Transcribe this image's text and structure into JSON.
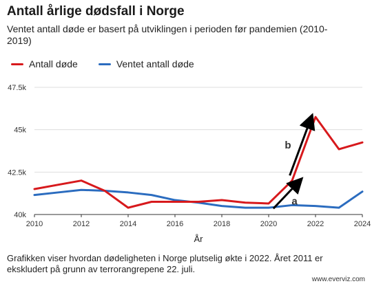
{
  "chart_data": {
    "type": "line",
    "title": "Antall årlige dødsfall i Norge",
    "subtitle": "Ventet antall døde er basert på utviklingen i perioden før pandemien (2010-2019)",
    "xlabel": "År",
    "ylabel": "",
    "x": [
      2010,
      2011,
      2012,
      2013,
      2014,
      2015,
      2016,
      2017,
      2018,
      2019,
      2020,
      2021,
      2022,
      2023,
      2024
    ],
    "xlim": [
      2010,
      2024
    ],
    "ylim": [
      40000,
      47500
    ],
    "x_ticks": [
      2010,
      2012,
      2014,
      2016,
      2018,
      2020,
      2022,
      2024
    ],
    "y_ticks": [
      40000,
      42500,
      45000,
      47500
    ],
    "x_tick_labels": [
      "2010",
      "2012",
      "2014",
      "2016",
      "2018",
      "2020",
      "2022",
      "2024"
    ],
    "y_tick_labels": [
      "40k",
      "42.5k",
      "45k",
      "47.5k"
    ],
    "grid": "horizontal",
    "legend_position": "top-left",
    "series": [
      {
        "name": "Antall døde",
        "color": "#d7191c",
        "values": [
          41500,
          41750,
          42000,
          41400,
          40400,
          40750,
          40750,
          40750,
          40850,
          40700,
          40650,
          42000,
          45750,
          43850,
          44250
        ]
      },
      {
        "name": "Ventet antall døde",
        "color": "#2b6cbf",
        "values": [
          41150,
          41300,
          41450,
          41400,
          41300,
          41150,
          40850,
          40700,
          40500,
          40400,
          40400,
          40550,
          40500,
          40400,
          41350
        ]
      }
    ],
    "annotations": [
      {
        "label": "a",
        "from": [
          2020.2,
          40350
        ],
        "to": [
          2021.3,
          41950
        ]
      },
      {
        "label": "b",
        "from": [
          2020.9,
          42300
        ],
        "to": [
          2021.8,
          45650
        ]
      }
    ]
  },
  "footnote": "Grafikken viser hvordan dødeligheten i Norge plutselig økte i 2022. Året 2011 er ekskludert på grunn av terrorangrepene 22. juli.",
  "credit": "www.everviz.com"
}
